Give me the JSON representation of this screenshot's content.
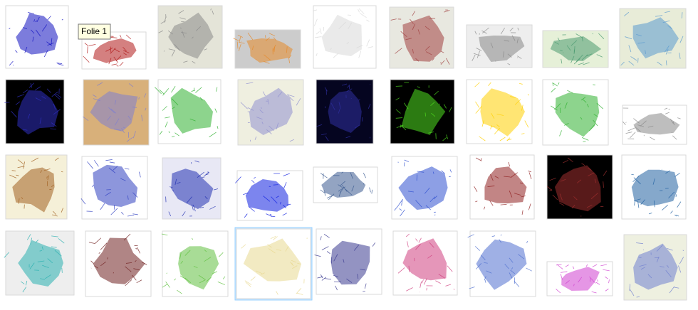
{
  "tooltip": {
    "label": "Folie 1"
  }
}
